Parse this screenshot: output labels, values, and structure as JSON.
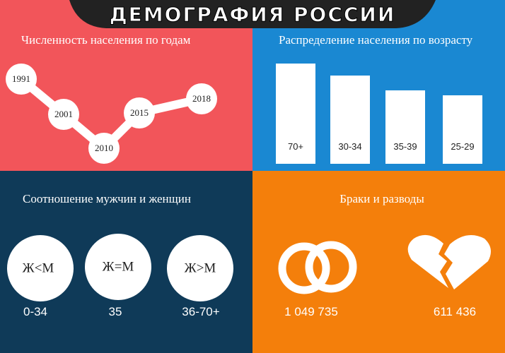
{
  "header": {
    "title": "ДЕМОГРАФИЯ РОССИИ"
  },
  "population": {
    "title": "Численность населения по годам",
    "years": [
      "1991",
      "2001",
      "2010",
      "2015",
      "2018"
    ]
  },
  "ages": {
    "title": "Распределение населения по возрасту",
    "groups": [
      "70+",
      "30-34",
      "35-39",
      "25-29"
    ]
  },
  "gender": {
    "title": "Соотношение мужчин и женщин",
    "ratios": [
      "Ж<М",
      "Ж=М",
      "Ж>М"
    ],
    "ages": [
      "0-34",
      "35",
      "36-70+"
    ]
  },
  "marriage": {
    "title": "Браки и разводы",
    "marriages": "1 049 735",
    "divorces": "611 436"
  }
}
